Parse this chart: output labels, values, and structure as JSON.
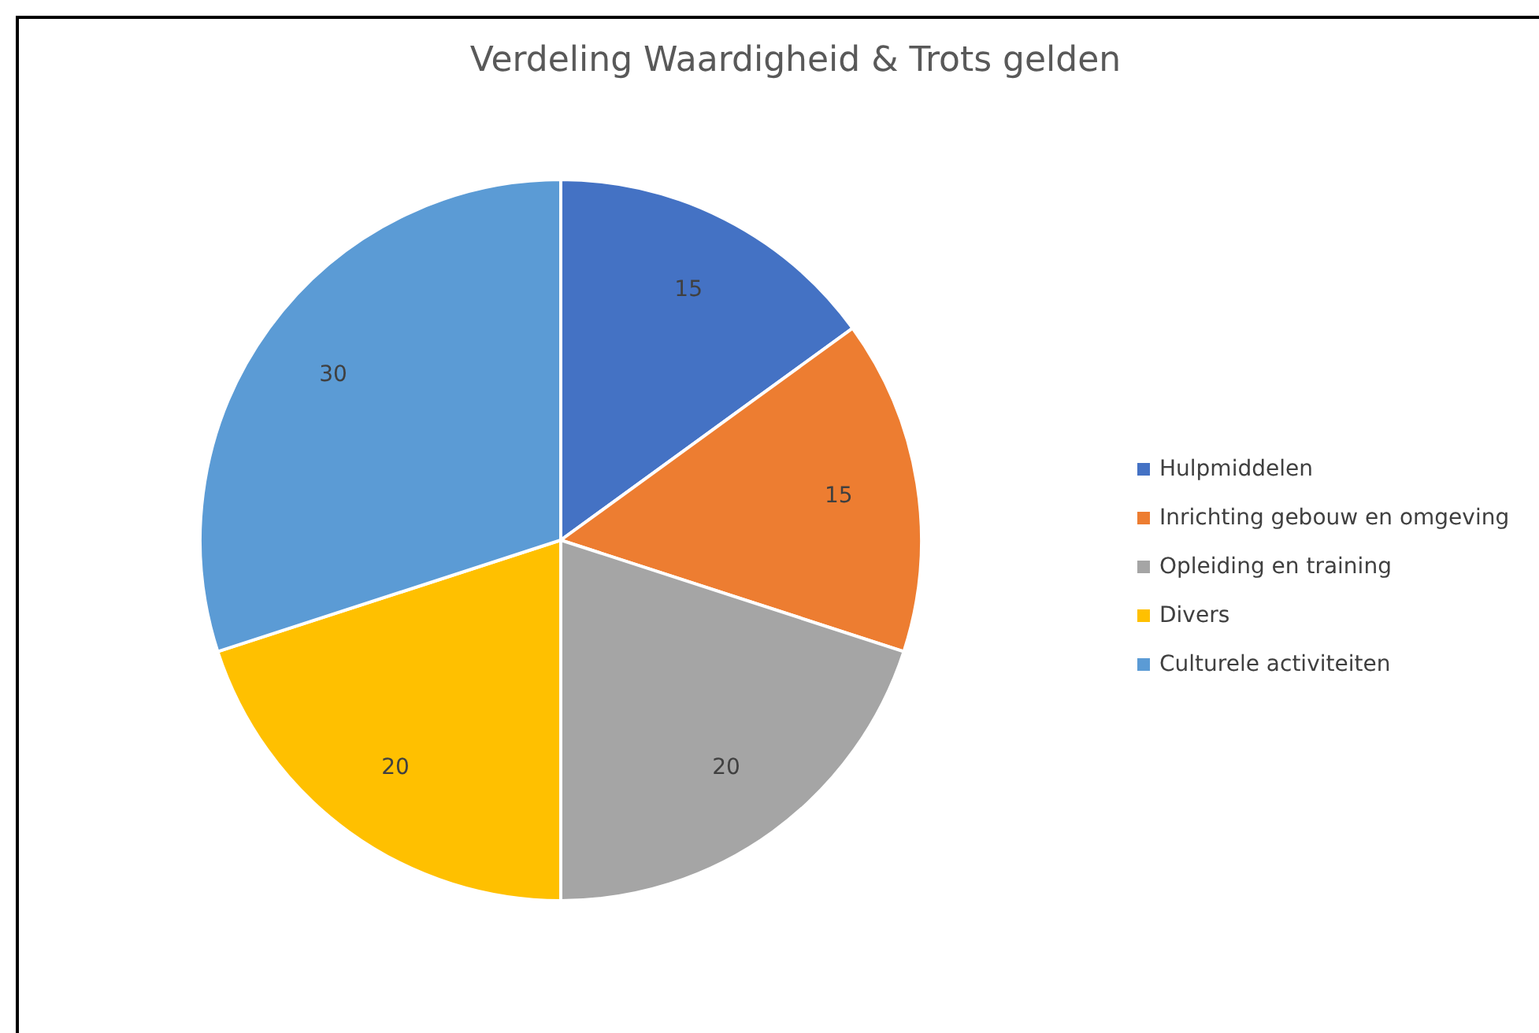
{
  "chart_data": {
    "type": "pie",
    "title": "Verdeling Waardigheid & Trots gelden",
    "categories": [
      "Hulpmiddelen",
      "Inrichting gebouw en omgeving",
      "Opleiding en training",
      "Divers",
      "Culturele activiteiten"
    ],
    "values": [
      15,
      15,
      20,
      20,
      30
    ],
    "colors": [
      "#4472c4",
      "#ed7d31",
      "#a5a5a5",
      "#ffc000",
      "#5b9bd5"
    ],
    "data_labels": true,
    "legend": "right"
  }
}
